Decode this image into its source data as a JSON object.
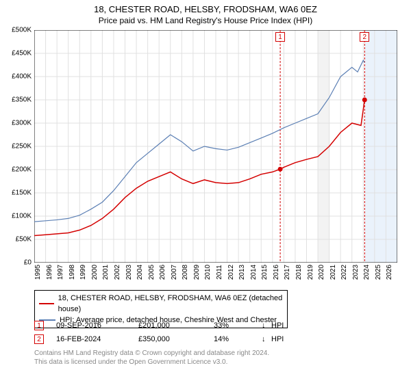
{
  "title": "18, CHESTER ROAD, HELSBY, FRODSHAM, WA6 0EZ",
  "subtitle": "Price paid vs. HM Land Registry's House Price Index (HPI)",
  "chart": {
    "type": "line",
    "xlim": [
      1995,
      2027
    ],
    "ylim": [
      0,
      500000
    ],
    "ytick_step": 50000,
    "ytick_labels": [
      "£0",
      "£50K",
      "£100K",
      "£150K",
      "£200K",
      "£250K",
      "£300K",
      "£350K",
      "£400K",
      "£450K",
      "£500K"
    ],
    "xticks": [
      1995,
      1996,
      1997,
      1998,
      1999,
      2000,
      2001,
      2002,
      2003,
      2004,
      2005,
      2006,
      2007,
      2008,
      2009,
      2010,
      2011,
      2012,
      2013,
      2014,
      2015,
      2016,
      2017,
      2018,
      2019,
      2020,
      2021,
      2022,
      2023,
      2024,
      2025,
      2026
    ],
    "background_color": "#ffffff",
    "grid_color": "#e0e0e0",
    "axis_color": "#000000",
    "shade_2020": {
      "from": 2020,
      "to": 2021,
      "color": "#f3f3f3"
    },
    "shade_future": {
      "from": 2024.15,
      "to": 2027,
      "color": "#eaf2fb"
    },
    "series": [
      {
        "name": "property",
        "label": "18, CHESTER ROAD, HELSBY, FRODSHAM, WA6 0EZ (detached house)",
        "color": "#d40000",
        "line_width": 1.5,
        "data": [
          [
            1995,
            58000
          ],
          [
            1996,
            60000
          ],
          [
            1997,
            62000
          ],
          [
            1998,
            64000
          ],
          [
            1999,
            70000
          ],
          [
            2000,
            80000
          ],
          [
            2001,
            95000
          ],
          [
            2002,
            115000
          ],
          [
            2003,
            140000
          ],
          [
            2004,
            160000
          ],
          [
            2005,
            175000
          ],
          [
            2006,
            185000
          ],
          [
            2007,
            195000
          ],
          [
            2008,
            180000
          ],
          [
            2009,
            170000
          ],
          [
            2010,
            178000
          ],
          [
            2011,
            172000
          ],
          [
            2012,
            170000
          ],
          [
            2013,
            172000
          ],
          [
            2014,
            180000
          ],
          [
            2015,
            190000
          ],
          [
            2016,
            195000
          ],
          [
            2016.68,
            201000
          ],
          [
            2017,
            205000
          ],
          [
            2018,
            215000
          ],
          [
            2019,
            222000
          ],
          [
            2020,
            228000
          ],
          [
            2021,
            250000
          ],
          [
            2022,
            280000
          ],
          [
            2023,
            300000
          ],
          [
            2023.8,
            295000
          ],
          [
            2024.12,
            350000
          ]
        ]
      },
      {
        "name": "hpi",
        "label": "HPI: Average price, detached house, Cheshire West and Chester",
        "color": "#5b7fb4",
        "line_width": 1.2,
        "data": [
          [
            1995,
            88000
          ],
          [
            1996,
            90000
          ],
          [
            1997,
            92000
          ],
          [
            1998,
            95000
          ],
          [
            1999,
            102000
          ],
          [
            2000,
            115000
          ],
          [
            2001,
            130000
          ],
          [
            2002,
            155000
          ],
          [
            2003,
            185000
          ],
          [
            2004,
            215000
          ],
          [
            2005,
            235000
          ],
          [
            2006,
            255000
          ],
          [
            2007,
            275000
          ],
          [
            2008,
            260000
          ],
          [
            2009,
            240000
          ],
          [
            2010,
            250000
          ],
          [
            2011,
            245000
          ],
          [
            2012,
            242000
          ],
          [
            2013,
            248000
          ],
          [
            2014,
            258000
          ],
          [
            2015,
            268000
          ],
          [
            2016,
            278000
          ],
          [
            2017,
            290000
          ],
          [
            2018,
            300000
          ],
          [
            2019,
            310000
          ],
          [
            2020,
            320000
          ],
          [
            2021,
            355000
          ],
          [
            2022,
            400000
          ],
          [
            2023,
            420000
          ],
          [
            2023.5,
            410000
          ],
          [
            2024.0,
            435000
          ],
          [
            2024.12,
            430000
          ]
        ]
      }
    ],
    "markers": [
      {
        "n": 1,
        "x": 2016.68,
        "y": 201000,
        "color": "#d40000"
      },
      {
        "n": 2,
        "x": 2024.12,
        "y": 350000,
        "color": "#d40000"
      }
    ],
    "callouts": [
      {
        "n": "1",
        "x": 2016.68,
        "badge_color": "#d40000"
      },
      {
        "n": "2",
        "x": 2024.12,
        "badge_color": "#d40000"
      }
    ]
  },
  "legend": {
    "rows": [
      {
        "color": "#d40000",
        "label": "18, CHESTER ROAD, HELSBY, FRODSHAM, WA6 0EZ (detached house)"
      },
      {
        "color": "#5b7fb4",
        "label": "HPI: Average price, detached house, Cheshire West and Chester"
      }
    ]
  },
  "marker_table": [
    {
      "n": "1",
      "badge_color": "#d40000",
      "date": "09-SEP-2016",
      "price": "£201,000",
      "pct": "33%",
      "arrow": "↓",
      "hpi": "HPI"
    },
    {
      "n": "2",
      "badge_color": "#d40000",
      "date": "16-FEB-2024",
      "price": "£350,000",
      "pct": "14%",
      "arrow": "↓",
      "hpi": "HPI"
    }
  ],
  "footer": {
    "line1": "Contains HM Land Registry data © Crown copyright and database right 2024.",
    "line2": "This data is licensed under the Open Government Licence v3.0."
  }
}
